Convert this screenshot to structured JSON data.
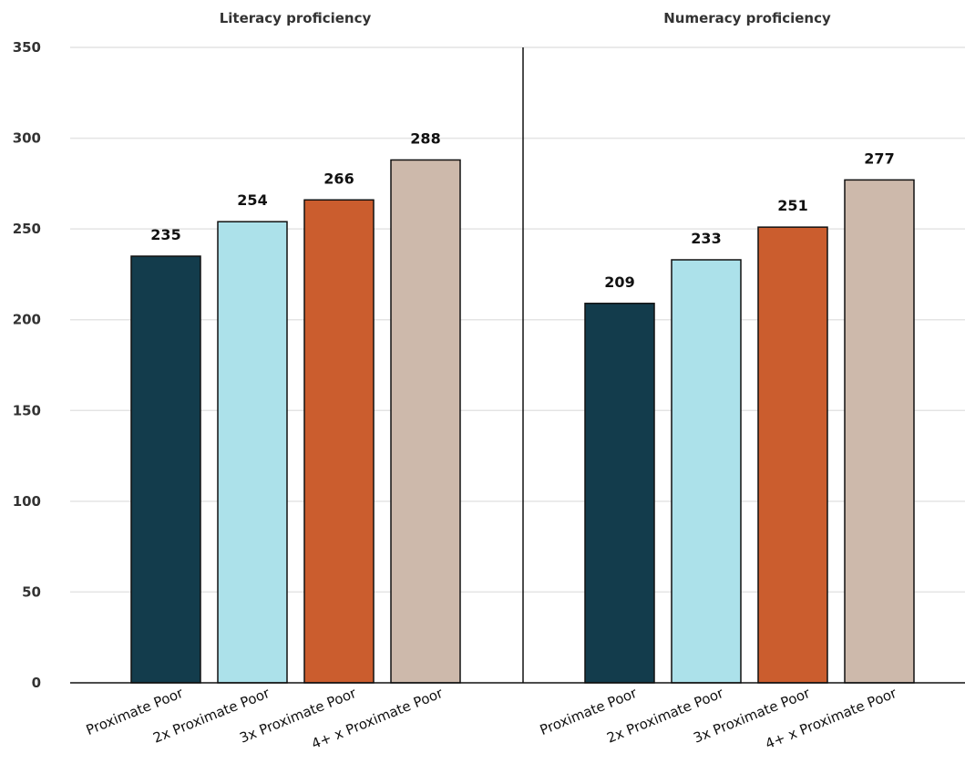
{
  "chart_data": {
    "type": "bar",
    "ylim": [
      0,
      350
    ],
    "yticks": [
      "0",
      "50",
      "100",
      "150",
      "200",
      "250",
      "300",
      "350"
    ],
    "grid": true,
    "legend": "none",
    "categories": [
      "Proximate Poor",
      "2x Proximate Poor",
      "3x Proximate Poor",
      "4+ x Proximate Poor"
    ],
    "category_colors": [
      "#133c4c",
      "#ace1ea",
      "#cb5d2e",
      "#cdb9ab"
    ],
    "panels": [
      {
        "title": "Literacy proficiency",
        "values": [
          235,
          254,
          266,
          288
        ]
      },
      {
        "title": "Numeracy proficiency",
        "values": [
          209,
          233,
          251,
          277
        ]
      }
    ]
  }
}
